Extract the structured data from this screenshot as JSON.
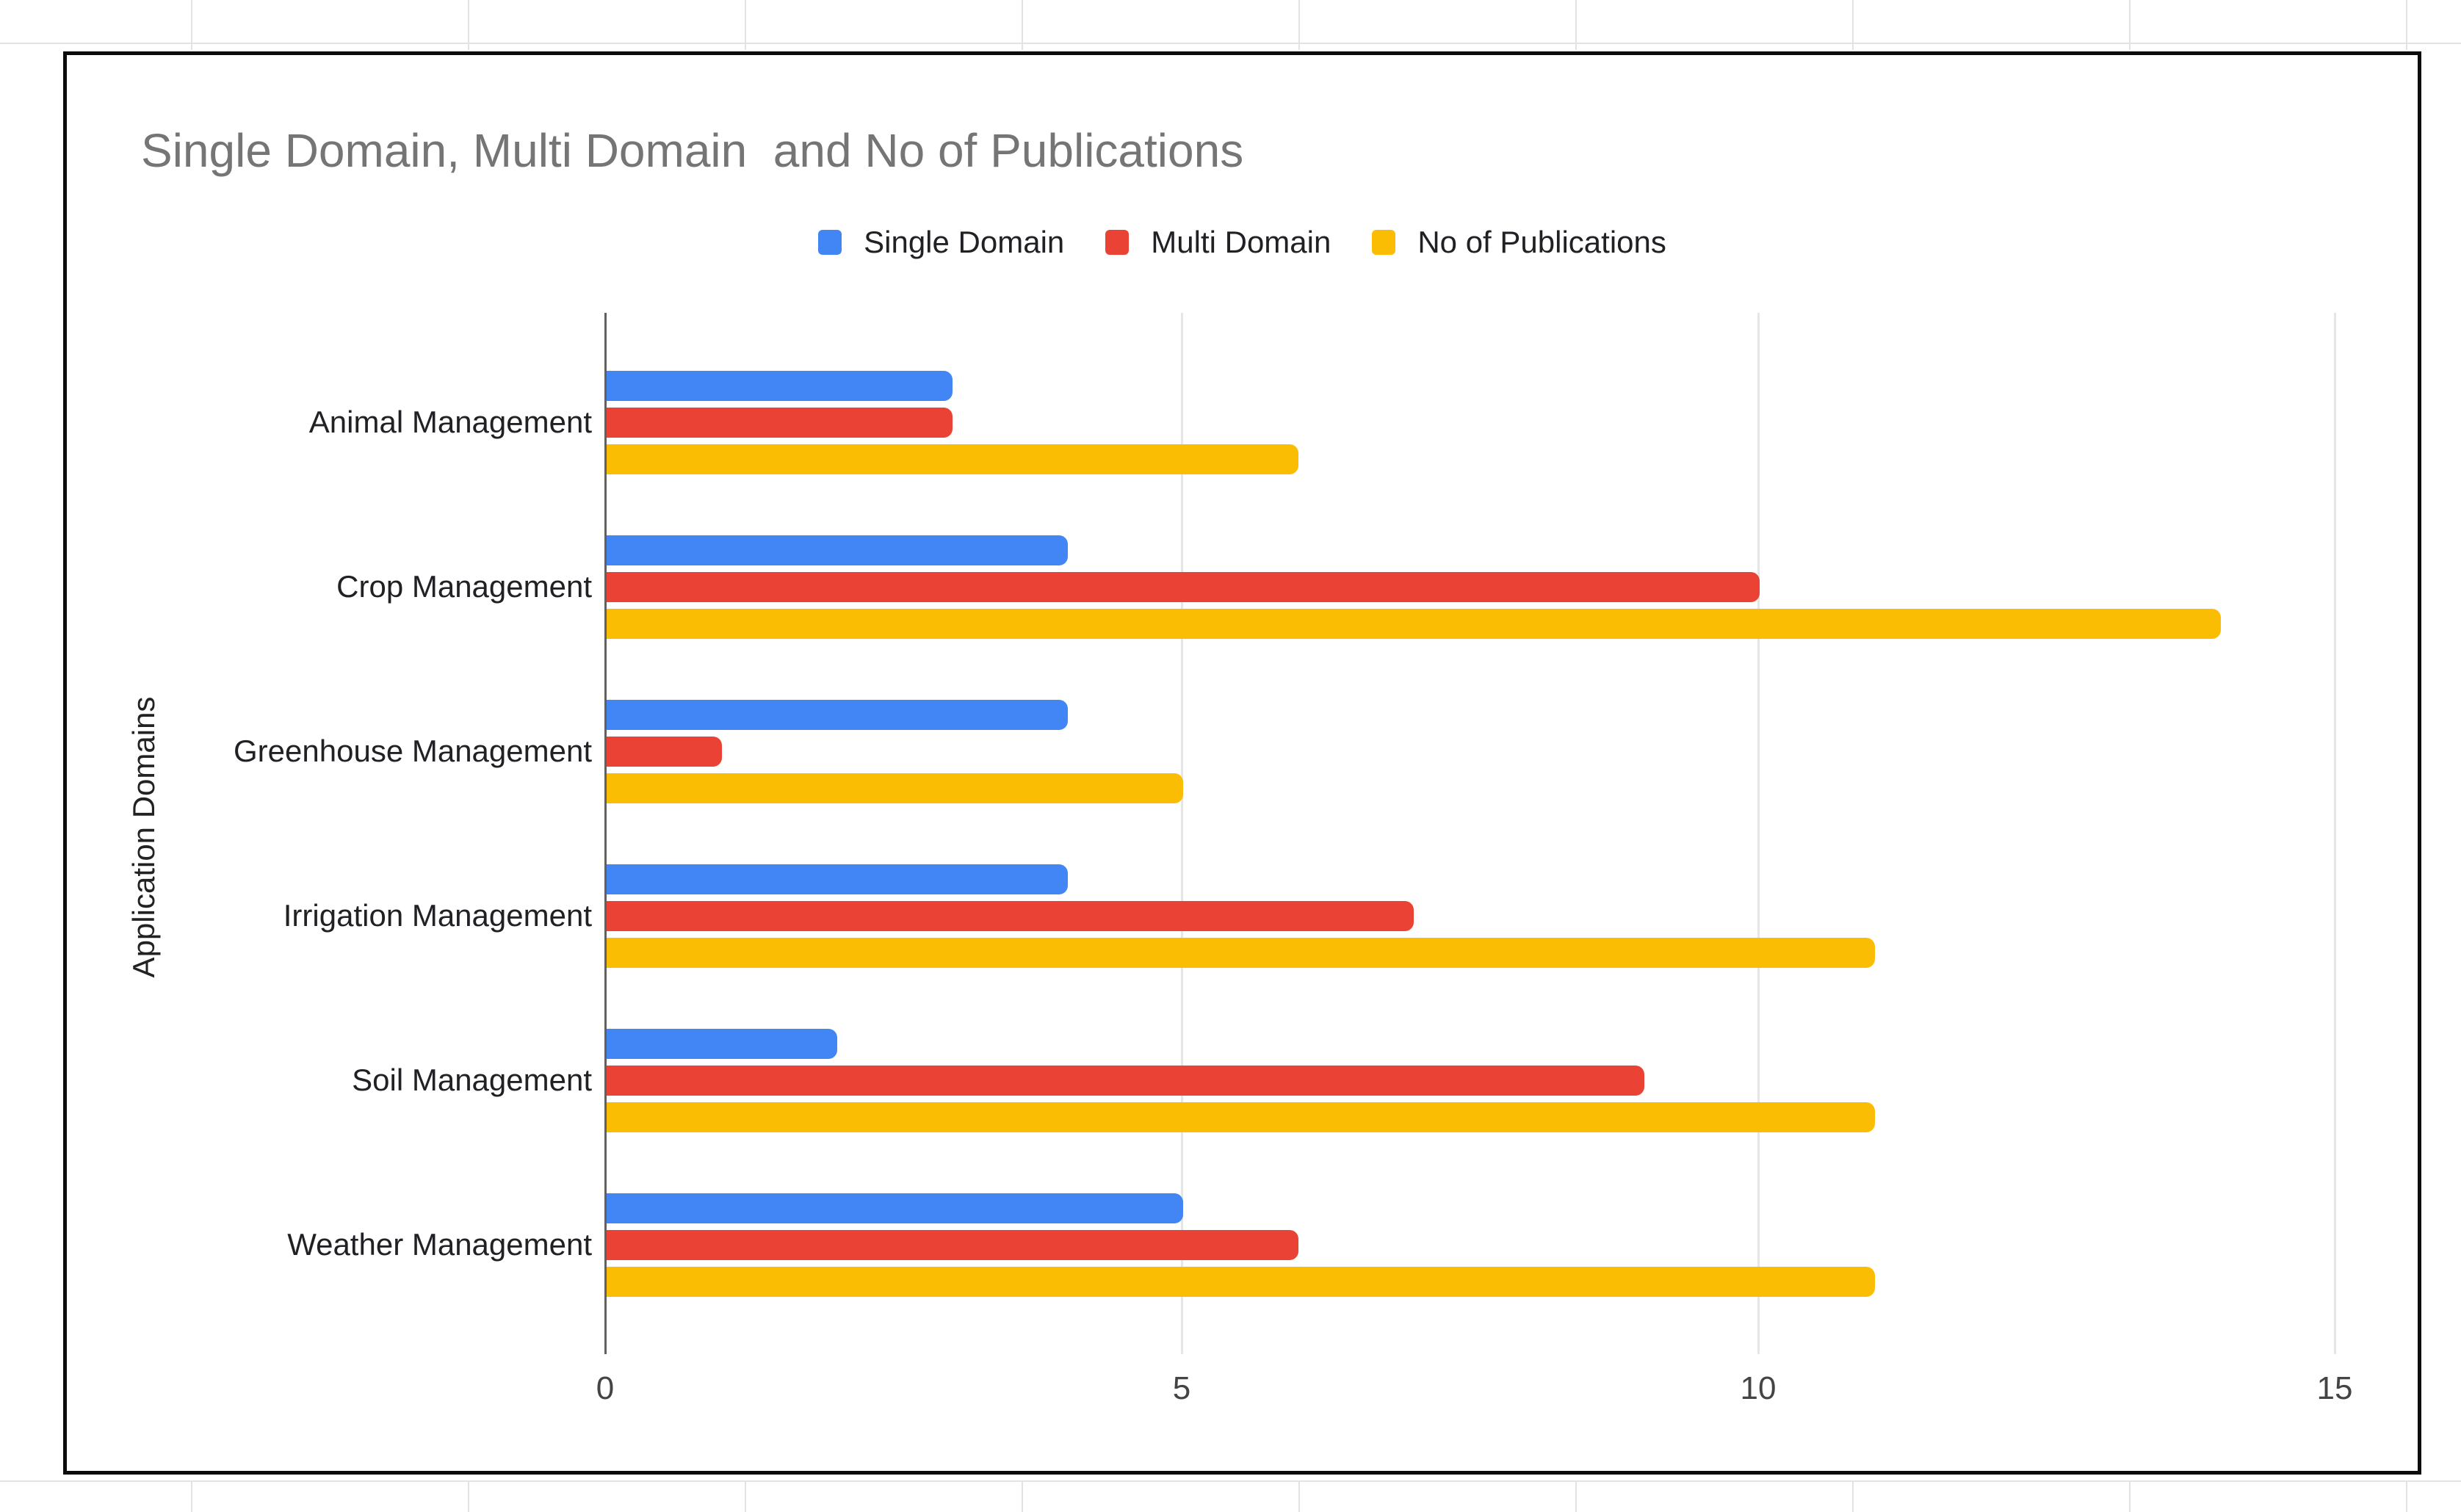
{
  "chart_data": {
    "type": "bar",
    "orientation": "horizontal",
    "title": "Single Domain, Multi Domain  and No of Publications",
    "xlabel": "",
    "ylabel": "Application Domains",
    "categories": [
      "Animal Management",
      "Crop Management",
      "Greenhouse Management",
      "Irrigation Management",
      "Soil Management",
      "Weather Management"
    ],
    "series": [
      {
        "name": "Single Domain",
        "color": "#4285F4",
        "values": [
          3,
          4,
          4,
          4,
          2,
          5
        ]
      },
      {
        "name": "Multi Domain",
        "color": "#EA4335",
        "values": [
          3,
          10,
          1,
          7,
          9,
          6
        ]
      },
      {
        "name": "No of Publications",
        "color": "#FBBC04",
        "values": [
          6,
          14,
          5,
          11,
          11,
          11
        ]
      }
    ],
    "xlim": [
      0,
      15
    ],
    "xticks": [
      0,
      5,
      10,
      15
    ],
    "legend_position": "top",
    "grid": "vertical-only"
  },
  "styles": {
    "title_color": "#757575",
    "legend_text_color": "#202124",
    "category_label_color": "#202124",
    "tick_label_color": "#444444",
    "axis_title_color": "#222222",
    "gridline_color": "#e6e6e6",
    "zero_axis_color": "#616161",
    "frame_border_color": "#0b0b0b",
    "sheet_line_color": "#e3e3e3",
    "background": "#ffffff"
  }
}
